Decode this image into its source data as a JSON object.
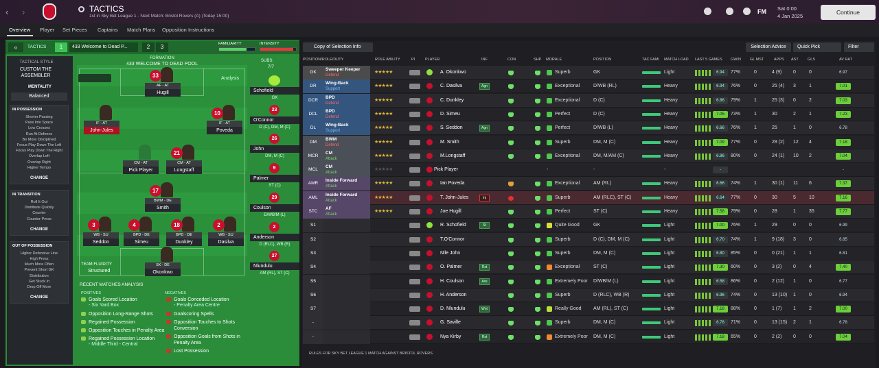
{
  "header": {
    "title": "TACTICS",
    "subtitle": "1st in Sky Bet League 1 - Next Match: Bristol Rovers (A) (Today 15:00)",
    "fm": "FM",
    "time": "Sat 0:00",
    "date": "4 Jan 2025",
    "continue": "Continue"
  },
  "tabs": [
    "Overview",
    "Player",
    "Set Pieces",
    "Captains",
    "Match Plans",
    "Opposition Instructions"
  ],
  "tactic_bar": {
    "label": "TACTICS",
    "slot1": "1",
    "name": "433 Welcome to Dead P...",
    "slot2": "2",
    "slot3": "3",
    "familiarity": "FAMILIARITY",
    "intensity": "INTENSITY"
  },
  "style": {
    "heading": "TACTICAL STYLE",
    "name": "CUSTOM THE ASSEMBLER",
    "mentality_label": "MENTALITY",
    "mentality": "Balanced",
    "sections": [
      {
        "title": "IN POSSESSION",
        "items": [
          "Shorter Passing",
          "Pass Into Space",
          "Low Crosses",
          "Run At Defence",
          "Be More Disciplined",
          "Focus Play Down The Left",
          "Focus Play Down The Right",
          "Overlap Left",
          "Overlap Right",
          "Higher Tempo"
        ],
        "button": "CHANGE"
      },
      {
        "title": "IN TRANSITION",
        "items": [
          "Roll It Out",
          "Distribute Quickly",
          "Counter",
          "Counter-Press"
        ],
        "button": "CHANGE"
      },
      {
        "title": "OUT OF POSSESSION",
        "items": [
          "Higher Defensive Line",
          "High Press",
          "Much More Often",
          "Prevent Short GK",
          "Distribution",
          "Get Stuck In",
          "Drop Off More"
        ],
        "button": "CHANGE"
      }
    ]
  },
  "pitch": {
    "label": "FORMATION",
    "formation": "433 WELCOME TO DEAD POOL",
    "analysis": "Analysis",
    "fluidity_label": "TEAM FLUIDITY",
    "fluidity": "Structured",
    "players": [
      {
        "number": "33",
        "role": "AF - AT",
        "name": "Hugill"
      },
      {
        "role": "IF - AT",
        "name": "John-Jules"
      },
      {
        "number": "10",
        "role": "IF - AT",
        "name": "Poveda"
      },
      {
        "role": "CM - AT",
        "name": "Pick Player"
      },
      {
        "number": "21",
        "role": "CM - AT",
        "name": "Longstaff"
      },
      {
        "number": "17",
        "role": "BWM - DE",
        "name": "Smith"
      },
      {
        "number": "3",
        "role": "WB - SU",
        "name": "Seddon"
      },
      {
        "number": "4",
        "role": "BPD - DE",
        "name": "Simeu"
      },
      {
        "number": "18",
        "role": "BPD - DE",
        "name": "Dunkley"
      },
      {
        "number": "2",
        "role": "WB - SU",
        "name": "Dasilva"
      },
      {
        "role": "SK - DE",
        "name": "Okonkwo"
      }
    ]
  },
  "subs": {
    "label": "SUBS:",
    "count": "7/7",
    "players": [
      {
        "name": "Schofield",
        "positions": "GK"
      },
      {
        "number": "23",
        "name": "O'Connor",
        "positions": "D (C), DM, M (C)"
      },
      {
        "number": "26",
        "name": "John",
        "positions": "DM, M (C)"
      },
      {
        "number": "9",
        "name": "Palmer",
        "positions": "ST (C)"
      },
      {
        "number": "29",
        "name": "Coulson",
        "positions": "D/WB/M (L)"
      },
      {
        "number": "2",
        "name": "Anderson",
        "positions": "D (RLC), WB (R)"
      },
      {
        "number": "27",
        "name": "Nlundulu",
        "positions": "AM (RL), ST (C)"
      }
    ]
  },
  "analysis": {
    "title": "RECENT MATCHES ANALYSIS",
    "positives_label": "POSITIVES",
    "negatives_label": "NEGATIVES",
    "positives": [
      {
        "text": "Goals Scored Location",
        "detail": "- Six Yard Box"
      },
      {
        "text": "Opposition Long-Range Shots"
      },
      {
        "text": "Regained Possession"
      },
      {
        "text": "Opposition Touches in Penalty Area"
      },
      {
        "text": "Regained Possession Location",
        "detail": "- Middle Third - Central"
      }
    ],
    "negatives": [
      {
        "text": "Goals Conceded Location",
        "detail": "- Penalty Area Centre"
      },
      {
        "text": "Goalscoring Spells"
      },
      {
        "text": "Opposition Touches to Shots Conversion"
      },
      {
        "text": "Opposition Goals from Shots in Penalty Area"
      },
      {
        "text": "Lost Possession"
      }
    ]
  },
  "table": {
    "buttons": {
      "copy": "Copy of Selection Info",
      "advice": "Selection Advice",
      "quick": "Quick Pick",
      "filter": "Filter"
    },
    "columns": [
      "POSITION/ROLE/DUTY",
      "ROLE ABILITY",
      "PI",
      "PLAYER",
      "INF",
      "CON",
      "SHP",
      "MORALE",
      "POSITION",
      "TAC FAMI",
      "MATCH LOAD",
      "LAST 5 GAMES",
      "GWIN",
      "GL MST",
      "APPS",
      "AST",
      "GLS",
      "AV RAT"
    ],
    "rows": [
      {
        "pos": "GK",
        "role": "Sweeper Keeper",
        "duty": "Defend",
        "player": "A. Okonkwo",
        "morale": "Superb",
        "position": "GK",
        "load": "Light",
        "form": "6.94",
        "gwin": "77%",
        "glmst": "0",
        "apps": "4 (9)",
        "ast": "0",
        "gls": "0",
        "rating": "6.97"
      },
      {
        "pos": "DR",
        "role": "Wing-Back",
        "duty": "Support",
        "player": "C. Dasilva",
        "inf": "Agn",
        "morale": "Exceptional",
        "position": "D/WB (RL)",
        "load": "Heavy",
        "form": "6.94",
        "gwin": "76%",
        "glmst": "0",
        "apps": "25 (4)",
        "ast": "3",
        "gls": "1",
        "rating": "7.01"
      },
      {
        "pos": "DCR",
        "role": "BPD",
        "duty": "Defend",
        "player": "C. Dunkley",
        "morale": "Exceptional",
        "position": "D (C)",
        "load": "Heavy",
        "form": "6.86",
        "gwin": "79%",
        "glmst": "1",
        "apps": "25 (3)",
        "ast": "0",
        "gls": "2",
        "rating": "7.03"
      },
      {
        "pos": "DCL",
        "role": "BPD",
        "duty": "Defend",
        "player": "D. Simeu",
        "morale": "Perfect",
        "position": "D (C)",
        "load": "Heavy",
        "form": "7.05",
        "gwin": "73%",
        "glmst": "1",
        "apps": "30",
        "ast": "2",
        "gls": "1",
        "rating": "7.23"
      },
      {
        "pos": "DL",
        "role": "Wing-Back",
        "duty": "Support",
        "player": "S. Seddon",
        "inf": "Agn",
        "morale": "Perfect",
        "position": "D/WB (L)",
        "load": "Heavy",
        "form": "6.66",
        "gwin": "76%",
        "glmst": "1",
        "apps": "25",
        "ast": "1",
        "gls": "0",
        "rating": "6.78"
      },
      {
        "pos": "DM",
        "role": "BWM",
        "duty": "Defend",
        "player": "M. Smith",
        "morale": "Superb",
        "position": "DM, M (C)",
        "load": "Heavy",
        "form": "7.09",
        "gwin": "77%",
        "glmst": "0",
        "apps": "28 (2)",
        "ast": "12",
        "gls": "4",
        "rating": "7.18"
      },
      {
        "pos": "MCR",
        "role": "CM",
        "duty": "Attack",
        "player": "M.Longstaff",
        "morale": "Exceptional",
        "position": "DM, M/AM (C)",
        "load": "Heavy",
        "form": "6.86",
        "gwin": "80%",
        "glmst": "0",
        "apps": "24 (1)",
        "ast": "10",
        "gls": "2",
        "rating": "7.04"
      },
      {
        "pos": "MCL",
        "role": "CM",
        "duty": "Attack",
        "player": "Pick Player",
        "morale": "-",
        "position": "-",
        "load": "-",
        "form": "-",
        "rating": "-"
      },
      {
        "pos": "AMR",
        "role": "Inside Forward",
        "duty": "Attack",
        "player": "Ian Poveda",
        "morale": "Exceptional",
        "position": "AM (RL)",
        "load": "Heavy",
        "form": "6.66",
        "gwin": "74%",
        "glmst": "1",
        "apps": "30 (1)",
        "ast": "11",
        "gls": "6",
        "rating": "7.37"
      },
      {
        "pos": "AML",
        "role": "Inside Forward",
        "duty": "Attack",
        "player": "T. John-Jules",
        "inf": "Inj",
        "morale": "Superb",
        "position": "AM (RLC), ST (C)",
        "load": "Heavy",
        "form": "6.64",
        "gwin": "77%",
        "glmst": "0",
        "apps": "30",
        "ast": "5",
        "gls": "10",
        "rating": "7.16"
      },
      {
        "pos": "STC",
        "role": "AF",
        "duty": "Attack",
        "player": "Joe Hugill",
        "morale": "Perfect",
        "position": "ST (C)",
        "load": "Heavy",
        "form": "7.58",
        "gwin": "79%",
        "glmst": "0",
        "apps": "28",
        "ast": "1",
        "gls": "35",
        "rating": "7.77"
      },
      {
        "pos": "S1",
        "player": "R. Schofield",
        "inf": "St",
        "morale": "Quite Good",
        "position": "GK",
        "load": "Light",
        "form": "7.00",
        "gwin": "76%",
        "glmst": "1",
        "apps": "29",
        "ast": "0",
        "gls": "0",
        "rating": "6.99"
      },
      {
        "pos": "S2",
        "player": "T.O'Connor",
        "morale": "Superb",
        "position": "D (C), DM, M (C)",
        "load": "Light",
        "form": "6.70",
        "gwin": "74%",
        "glmst": "1",
        "apps": "9 (18)",
        "ast": "3",
        "gls": "0",
        "rating": "6.85"
      },
      {
        "pos": "S3",
        "player": "Nlle John",
        "morale": "Superb",
        "position": "DM, M (C)",
        "load": "Light",
        "form": "6.80",
        "gwin": "85%",
        "glmst": "0",
        "apps": "0 (21)",
        "ast": "1",
        "gls": "1",
        "rating": "6.81"
      },
      {
        "pos": "S4",
        "player": "O. Palmer",
        "inf": "Rst",
        "morale": "Exceptional",
        "position": "ST (C)",
        "load": "Light",
        "form": "7.30",
        "gwin": "60%",
        "glmst": "0",
        "apps": "3 (2)",
        "ast": "0",
        "gls": "4",
        "rating": "7.40"
      },
      {
        "pos": "S5",
        "player": "H. Coulson",
        "inf": "Ass",
        "morale": "Extremely Poor",
        "position": "D/WB/M (L)",
        "load": "Light",
        "form": "6.58",
        "gwin": "86%",
        "glmst": "0",
        "apps": "2 (12)",
        "ast": "1",
        "gls": "0",
        "rating": "6.77"
      },
      {
        "pos": "S6",
        "player": "H. Anderson",
        "morale": "Superb",
        "position": "D (RLC), WB (R)",
        "load": "Light",
        "form": "6.96",
        "gwin": "74%",
        "glmst": "0",
        "apps": "13 (10)",
        "ast": "1",
        "gls": "0",
        "rating": "6.94"
      },
      {
        "pos": "S7",
        "player": "D. Nlundulu",
        "inf": "Wnt",
        "morale": "Really Good",
        "position": "AM (RL), ST (C)",
        "load": "Light",
        "form": "7.18",
        "gwin": "88%",
        "glmst": "0",
        "apps": "1 (7)",
        "ast": "1",
        "gls": "2",
        "rating": "7.00"
      },
      {
        "pos": "-",
        "player": "G. Saville",
        "morale": "Superb",
        "position": "DM, M (C)",
        "load": "Light",
        "form": "6.78",
        "gwin": "71%",
        "glmst": "0",
        "apps": "13 (15)",
        "ast": "2",
        "gls": "1",
        "rating": "6.78"
      },
      {
        "pos": "-",
        "player": "Nya Kirby",
        "inf": "Rst",
        "morale": "Extremely Poor",
        "position": "DM, M (C)",
        "load": "Light",
        "form": "7.18",
        "gwin": "65%",
        "glmst": "0",
        "apps": "2 (2)",
        "ast": "0",
        "gls": "0",
        "rating": "7.04"
      }
    ],
    "footer": "RULES FOR SKY BET LEAGUE 1 MATCH AGAINST BRISTOL ROVERS"
  }
}
